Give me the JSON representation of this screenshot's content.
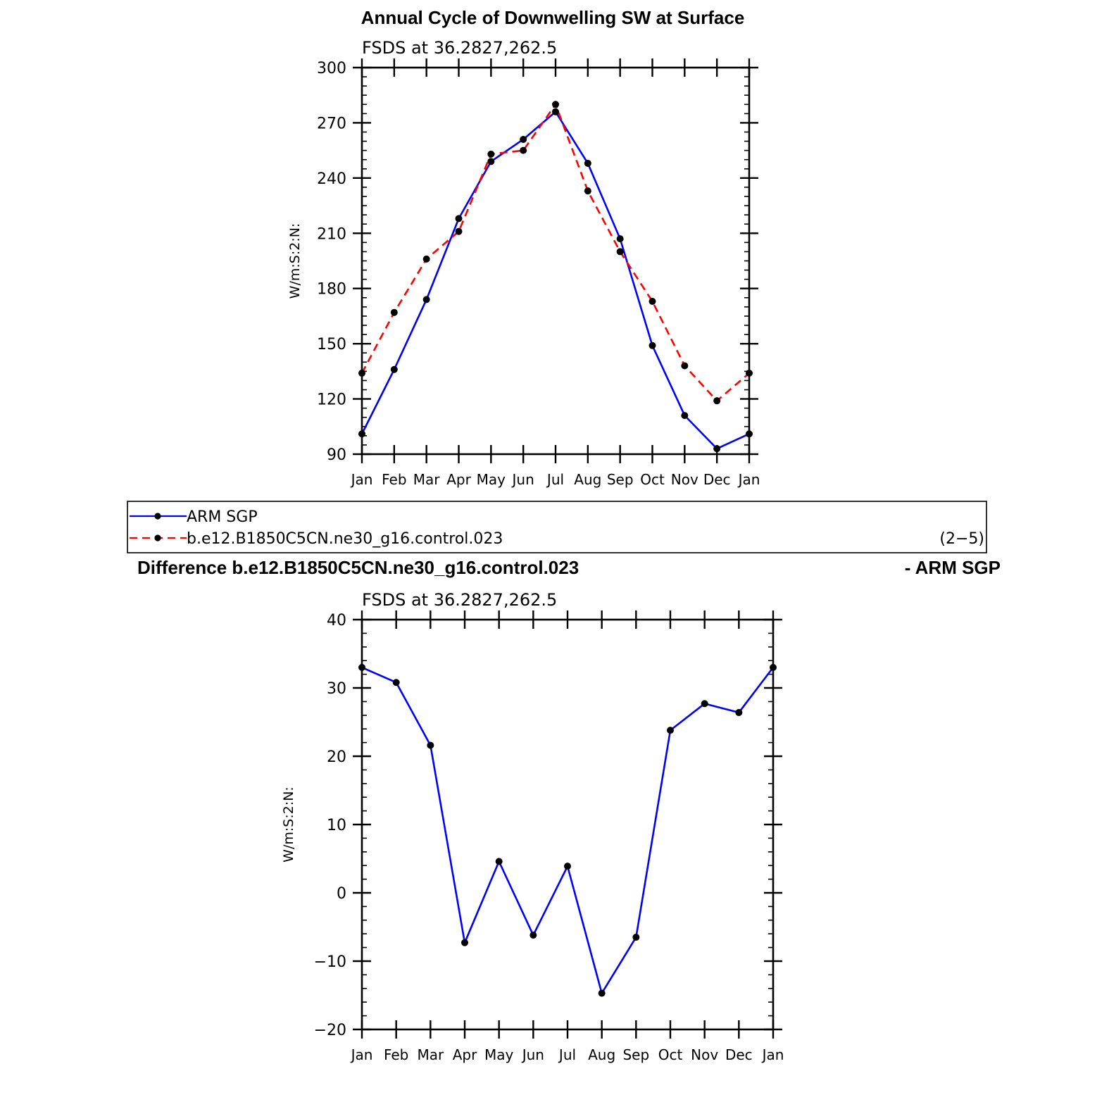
{
  "top_title": "Annual Cycle of Downwelling SW at Surface",
  "diff_title_left": "Difference b.e12.B1850C5CN.ne30_g16.control.023",
  "diff_title_right": "- ARM SGP",
  "legend": {
    "items": [
      "ARM SGP",
      "b.e12.B1850C5CN.ne30_g16.control.023"
    ],
    "page_label": "(2−5)"
  },
  "colors": {
    "obs": "#0000ff",
    "model": "#ff0000",
    "axis": "#000000"
  },
  "chart_data": [
    {
      "type": "line",
      "subtitle": "FSDS at 36.2827,262.5",
      "ylabel": "W/m:S:2:N:",
      "categories": [
        "Jan",
        "Feb",
        "Mar",
        "Apr",
        "May",
        "Jun",
        "Jul",
        "Aug",
        "Sep",
        "Oct",
        "Nov",
        "Dec",
        "Jan"
      ],
      "ylim": [
        90,
        300
      ],
      "yticks": [
        90,
        120,
        150,
        180,
        210,
        240,
        270,
        300
      ],
      "series": [
        {
          "name": "ARM SGP",
          "style": "solid",
          "values": [
            101,
            136,
            174,
            218,
            249,
            261,
            276,
            248,
            207,
            149,
            111,
            93,
            101
          ]
        },
        {
          "name": "b.e12.B1850C5CN.ne30_g16.control.023",
          "style": "dashed",
          "values": [
            134,
            167,
            196,
            211,
            253,
            255,
            280,
            233,
            200,
            173,
            138,
            119,
            134
          ]
        }
      ]
    },
    {
      "type": "line",
      "subtitle": "FSDS at 36.2827,262.5",
      "ylabel": "W/m:S:2:N:",
      "categories": [
        "Jan",
        "Feb",
        "Mar",
        "Apr",
        "May",
        "Jun",
        "Jul",
        "Aug",
        "Sep",
        "Oct",
        "Nov",
        "Dec",
        "Jan"
      ],
      "ylim": [
        -20,
        40
      ],
      "yticks": [
        -20,
        -10,
        0,
        10,
        20,
        30,
        40
      ],
      "yticklabels": [
        "−20",
        "−10",
        "0",
        "10",
        "20",
        "30",
        "40"
      ],
      "series": [
        {
          "style": "solid",
          "values": [
            33,
            30.8,
            21.6,
            -7.3,
            4.6,
            -6.2,
            3.9,
            -14.7,
            -6.5,
            23.8,
            27.7,
            26.4,
            33
          ]
        }
      ]
    }
  ]
}
